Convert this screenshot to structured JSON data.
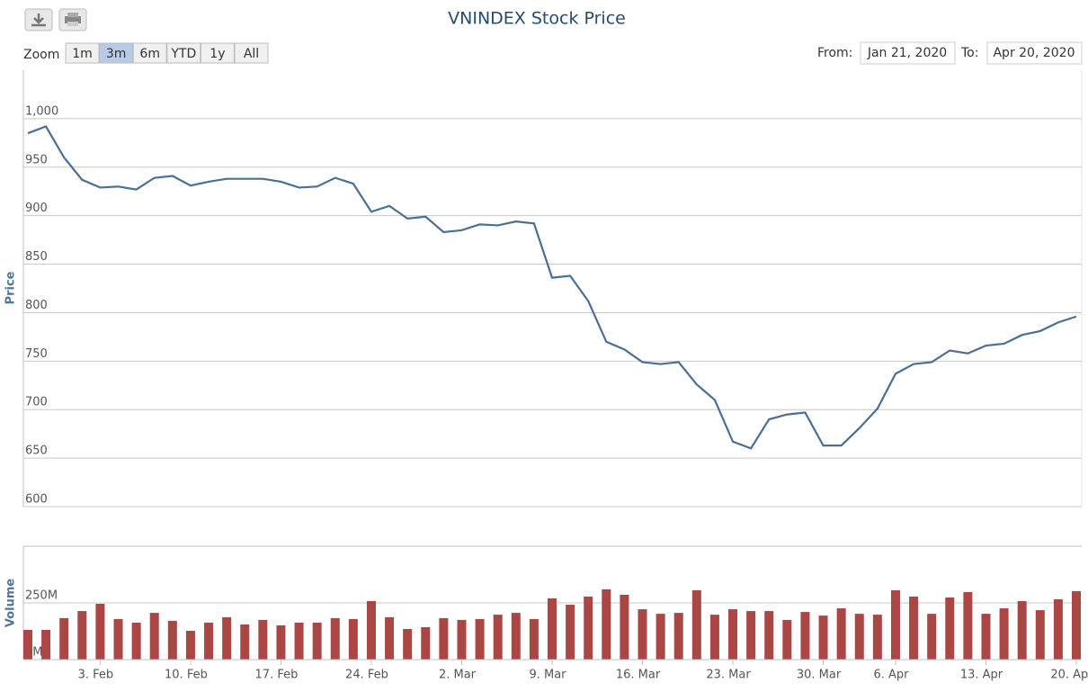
{
  "ui": {
    "zoom_label": "Zoom",
    "zoom_buttons": [
      "1m",
      "3m",
      "6m",
      "YTD",
      "1y",
      "All"
    ],
    "selected_zoom": "3m",
    "from_label": "From:",
    "from": "Jan 21, 2020",
    "to_label": "To:",
    "to": "Apr 20, 2020"
  },
  "chart_data": [
    {
      "type": "line",
      "title": "VNINDEX Stock Price",
      "y_label": "Price",
      "color": "#4a6f96",
      "values": [
        985,
        992,
        960,
        937,
        929,
        930,
        927,
        939,
        941,
        931,
        935,
        938,
        938,
        938,
        935,
        929,
        930,
        939,
        933,
        904,
        910,
        897,
        899,
        883,
        885,
        891,
        890,
        894,
        892,
        836,
        838,
        812,
        770,
        762,
        749,
        747,
        749,
        726,
        710,
        667,
        660,
        690,
        695,
        697,
        663,
        663,
        681,
        701,
        737,
        747,
        749,
        761,
        758,
        766,
        768,
        777,
        781,
        790,
        796
      ],
      "ylim": [
        600,
        1050
      ],
      "yticks": [
        600,
        650,
        700,
        750,
        800,
        850,
        900,
        950,
        {
          "value": 1000,
          "label": "1,000"
        }
      ],
      "grid": true
    },
    {
      "type": "bar",
      "y_label": "Volume",
      "color": "#aa4643",
      "categories": [
        null,
        null,
        null,
        null,
        "3. Feb",
        null,
        null,
        null,
        null,
        "10. Feb",
        null,
        null,
        null,
        null,
        "17. Feb",
        null,
        null,
        null,
        null,
        "24. Feb",
        null,
        null,
        null,
        null,
        "2. Mar",
        null,
        null,
        null,
        null,
        "9. Mar",
        null,
        null,
        null,
        null,
        "16. Mar",
        null,
        null,
        null,
        null,
        "23. Mar",
        null,
        null,
        null,
        null,
        "30. Mar",
        null,
        null,
        null,
        "6. Apr",
        null,
        null,
        null,
        null,
        "13. Apr",
        null,
        null,
        null,
        null,
        "20. Apr"
      ],
      "values": [
        131,
        131,
        183,
        214,
        246,
        179,
        163,
        206,
        171,
        127,
        163,
        187,
        155,
        175,
        151,
        163,
        163,
        183,
        179,
        258,
        187,
        135,
        143,
        183,
        175,
        179,
        198,
        206,
        179,
        270,
        242,
        278,
        310,
        286,
        222,
        202,
        206,
        306,
        198,
        222,
        214,
        214,
        175,
        210,
        194,
        226,
        202,
        198,
        306,
        278,
        202,
        274,
        298,
        202,
        226,
        258,
        218,
        266,
        302
      ],
      "ylim": [
        0,
        500
      ],
      "yticks": [
        {
          "value": 0,
          "label": "0M"
        },
        {
          "value": 250,
          "label": "250M"
        }
      ],
      "grid": true
    }
  ]
}
